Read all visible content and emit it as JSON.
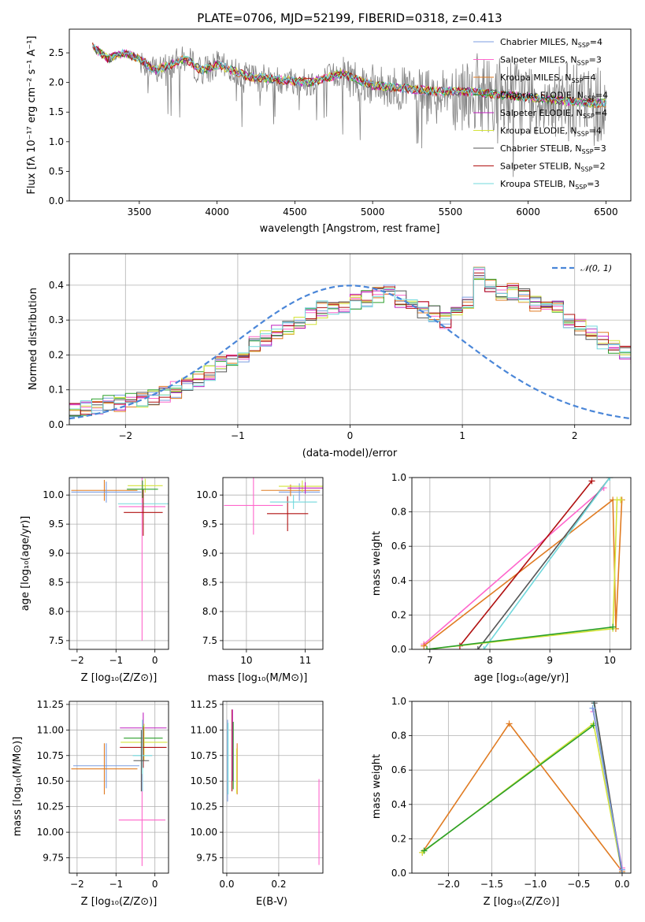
{
  "chart_data": [
    {
      "id": "spectrum",
      "type": "line",
      "title": "PLATE=0706, MJD=52199, FIBERID=0318, z=0.413",
      "xlabel": "wavelength [Angstrom, rest frame]",
      "ylabel": "Flux [fλ 10⁻¹⁷ erg cm⁻² s⁻¹ A⁻¹]",
      "xlim": [
        3050,
        6660
      ],
      "ylim": [
        0,
        2.9
      ],
      "xticks": [
        "3500",
        "4000",
        "4500",
        "5000",
        "5500",
        "6000",
        "6500"
      ],
      "xtick_values": [
        3500,
        4000,
        4500,
        5000,
        5500,
        6000,
        6500
      ],
      "yticks": [
        "0.0",
        "0.5",
        "1.0",
        "1.5",
        "2.0",
        "2.5"
      ],
      "ytick_values": [
        0,
        0.5,
        1.0,
        1.5,
        2.0,
        2.5
      ],
      "data_color": "#808080",
      "data_profile": {
        "x": [
          3200,
          3300,
          3400,
          3500,
          3600,
          3700,
          3800,
          3900,
          4000,
          4200,
          4400,
          4600,
          4800,
          5000,
          5200,
          5400,
          5600,
          5800,
          6000,
          6200,
          6400,
          6500
        ],
        "y": [
          2.6,
          2.4,
          2.5,
          2.4,
          2.2,
          2.3,
          2.4,
          2.2,
          2.3,
          2.1,
          2.05,
          2.0,
          2.15,
          1.95,
          1.9,
          1.85,
          1.85,
          1.8,
          1.75,
          1.7,
          1.65,
          1.65
        ]
      },
      "legend": [
        {
          "name": "Chabrier MILES, N_SSP=4",
          "prefix": "Chabrier MILES, N",
          "sub": "SSP",
          "suffix": "=4",
          "color": "#7b9ee0"
        },
        {
          "name": "Salpeter MILES, N_SSP=3",
          "prefix": "Salpeter MILES, N",
          "sub": "SSP",
          "suffix": "=3",
          "color": "#ff66cc"
        },
        {
          "name": "Kroupa MILES, N_SSP=4",
          "prefix": "Kroupa MILES, N",
          "sub": "SSP",
          "suffix": "=4",
          "color": "#e07b22"
        },
        {
          "name": "Chabrier ELODIE, N_SSP=4",
          "prefix": "Chabrier ELODIE, N",
          "sub": "SSP",
          "suffix": "=4",
          "color": "#2ca02c"
        },
        {
          "name": "Salpeter ELODIE, N_SSP=4",
          "prefix": "Salpeter ELODIE, N",
          "sub": "SSP",
          "suffix": "=4",
          "color": "#c020c0"
        },
        {
          "name": "Kroupa ELODIE, N_SSP=4",
          "prefix": "Kroupa ELODIE, N",
          "sub": "SSP",
          "suffix": "=4",
          "color": "#d4e33a"
        },
        {
          "name": "Chabrier STELIB, N_SSP=3",
          "prefix": "Chabrier STELIB, N",
          "sub": "SSP",
          "suffix": "=3",
          "color": "#555555"
        },
        {
          "name": "Salpeter STELIB, N_SSP=2",
          "prefix": "Salpeter STELIB, N",
          "sub": "SSP",
          "suffix": "=2",
          "color": "#b01010"
        },
        {
          "name": "Kroupa STELIB, N_SSP=3",
          "prefix": "Kroupa STELIB, N",
          "sub": "SSP",
          "suffix": "=3",
          "color": "#70d8dc"
        }
      ],
      "legend_placement": "upper right",
      "grid": false
    },
    {
      "id": "residuals",
      "type": "histogram",
      "xlabel": "(data-model)/error",
      "ylabel": "Normed distribution",
      "xlim": [
        -2.5,
        2.5
      ],
      "ylim": [
        0,
        0.49
      ],
      "xticks": [
        "−2",
        "−1",
        "0",
        "1",
        "2"
      ],
      "xtick_values": [
        -2,
        -1,
        0,
        1,
        2
      ],
      "yticks": [
        "0.0",
        "0.1",
        "0.2",
        "0.3",
        "0.4"
      ],
      "ytick_values": [
        0,
        0.1,
        0.2,
        0.3,
        0.4
      ],
      "grid": true,
      "legend": [
        {
          "name": "𝒩(0, 1)",
          "color": "#4a86d8",
          "style": "dashed"
        }
      ],
      "legend_placement": "upper right",
      "bin_width": 0.1,
      "bin_start": -2.5,
      "base_counts": [
        0.04,
        0.045,
        0.05,
        0.06,
        0.06,
        0.065,
        0.075,
        0.08,
        0.09,
        0.1,
        0.11,
        0.13,
        0.15,
        0.17,
        0.19,
        0.2,
        0.23,
        0.25,
        0.27,
        0.28,
        0.3,
        0.31,
        0.33,
        0.33,
        0.34,
        0.35,
        0.36,
        0.37,
        0.38,
        0.36,
        0.34,
        0.33,
        0.32,
        0.3,
        0.32,
        0.35,
        0.44,
        0.4,
        0.38,
        0.38,
        0.37,
        0.35,
        0.34,
        0.33,
        0.3,
        0.28,
        0.26,
        0.24,
        0.22,
        0.2,
        0.18,
        0.17,
        0.16,
        0.14,
        0.13,
        0.12,
        0.11,
        0.1,
        0.09,
        0.085,
        0.08,
        0.075,
        0.07,
        0.06,
        0.055,
        0.05,
        0.045,
        0.045,
        0.04,
        0.04
      ],
      "normal": {
        "mu": 0,
        "sigma": 1
      }
    },
    {
      "id": "age_vs_Z",
      "type": "scatter",
      "xlabel": "Z [log₁₀(Z/Z⊙)]",
      "ylabel": "age  [log₁₀(age/yr)]",
      "xlim": [
        -2.2,
        0.35
      ],
      "ylim": [
        7.35,
        10.3
      ],
      "xticks": [
        "−2",
        "−1",
        "0"
      ],
      "xtick_values": [
        -2,
        -1,
        0
      ],
      "yticks": [
        "7.5",
        "8.0",
        "8.5",
        "9.0",
        "9.5",
        "10.0"
      ],
      "ytick_values": [
        7.5,
        8.0,
        8.5,
        9.0,
        9.5,
        10.0
      ],
      "grid": true,
      "points": [
        {
          "x": -1.3,
          "y": 10.08,
          "ex": 0.85,
          "ey": 0.18,
          "color": "#e07b22"
        },
        {
          "x": -1.25,
          "y": 10.05,
          "ex": 0.9,
          "ey": 0.18,
          "color": "#7b9ee0"
        },
        {
          "x": -0.33,
          "y": 9.8,
          "ex": 0.6,
          "ey": 2.3,
          "color": "#ff66cc"
        },
        {
          "x": -0.25,
          "y": 10.16,
          "ex": 0.45,
          "ey": 0.12,
          "color": "#d4e33a"
        },
        {
          "x": -0.3,
          "y": 9.85,
          "ex": 0.65,
          "ey": 0.15,
          "color": "#70d8dc"
        },
        {
          "x": -0.3,
          "y": 9.7,
          "ex": 0.5,
          "ey": 0.4,
          "color": "#b01010"
        },
        {
          "x": -0.32,
          "y": 10.1,
          "ex": 0.4,
          "ey": 0.15,
          "color": "#2ca02c"
        }
      ]
    },
    {
      "id": "age_vs_mass",
      "type": "scatter",
      "xlabel": "mass [log₁₀(M/M⊙)]",
      "ylabel": "",
      "xlim": [
        9.6,
        11.3
      ],
      "ylim": [
        7.35,
        10.3
      ],
      "xticks": [
        "10",
        "11"
      ],
      "xtick_values": [
        10,
        11
      ],
      "yticks": [
        "7.5",
        "8.0",
        "8.5",
        "9.0",
        "9.5",
        "10.0"
      ],
      "ytick_values": [
        7.5,
        8.0,
        8.5,
        9.0,
        9.5,
        10.0
      ],
      "grid": true,
      "points": [
        {
          "x": 10.12,
          "y": 9.82,
          "ex": 0.5,
          "ey": 0.5,
          "color": "#ff66cc"
        },
        {
          "x": 10.7,
          "y": 9.68,
          "ex": 0.35,
          "ey": 0.3,
          "color": "#b01010"
        },
        {
          "x": 10.8,
          "y": 9.88,
          "ex": 0.4,
          "ey": 0.12,
          "color": "#70d8dc"
        },
        {
          "x": 10.9,
          "y": 10.05,
          "ex": 0.35,
          "ey": 0.15,
          "color": "#7b9ee0"
        },
        {
          "x": 10.75,
          "y": 10.08,
          "ex": 0.5,
          "ey": 0.1,
          "color": "#e07b22"
        },
        {
          "x": 10.95,
          "y": 10.15,
          "ex": 0.4,
          "ey": 0.1,
          "color": "#d4e33a"
        },
        {
          "x": 11.0,
          "y": 10.12,
          "ex": 0.3,
          "ey": 0.1,
          "color": "#c020c0"
        }
      ]
    },
    {
      "id": "mass_weight_vs_age",
      "type": "line",
      "xlabel": "age  [log₁₀(age/yr)]",
      "ylabel": "mass weight",
      "xlim": [
        6.7,
        10.35
      ],
      "ylim": [
        0,
        1.0
      ],
      "xticks": [
        "7",
        "8",
        "9",
        "10"
      ],
      "xtick_values": [
        7,
        8,
        9,
        10
      ],
      "yticks": [
        "0.0",
        "0.2",
        "0.4",
        "0.6",
        "0.8",
        "1.0"
      ],
      "ytick_values": [
        0,
        0.2,
        0.4,
        0.6,
        0.8,
        1.0
      ],
      "grid": true,
      "series": [
        {
          "color": "#ff66cc",
          "x": [
            6.9,
            9.9
          ],
          "y": [
            0.03,
            0.94
          ]
        },
        {
          "color": "#e07b22",
          "x": [
            6.9,
            10.05,
            10.1,
            10.2
          ],
          "y": [
            0.02,
            0.87,
            0.12,
            0.87
          ]
        },
        {
          "color": "#b01010",
          "x": [
            7.5,
            9.7
          ],
          "y": [
            0.02,
            0.98
          ]
        },
        {
          "color": "#555555",
          "x": [
            7.8,
            10.0
          ],
          "y": [
            0.0,
            1.0
          ]
        },
        {
          "color": "#70d8dc",
          "x": [
            7.9,
            10.0
          ],
          "y": [
            0.0,
            1.0
          ]
        },
        {
          "color": "#d4e33a",
          "x": [
            6.95,
            10.05,
            10.12,
            10.18
          ],
          "y": [
            0.0,
            0.12,
            0.87,
            0.87
          ]
        },
        {
          "color": "#2ca02c",
          "x": [
            6.95,
            10.05
          ],
          "y": [
            0.0,
            0.13
          ]
        }
      ]
    },
    {
      "id": "mass_vs_Z",
      "type": "scatter",
      "xlabel": "Z [log₁₀(Z/Z⊙)]",
      "ylabel": "mass [log₁₀(M/M⊙)]",
      "xlim": [
        -2.2,
        0.35
      ],
      "ylim": [
        9.6,
        11.28
      ],
      "xticks": [
        "−2",
        "−1",
        "0"
      ],
      "xtick_values": [
        -2,
        -1,
        0
      ],
      "yticks": [
        "9.75",
        "10.00",
        "10.25",
        "10.50",
        "10.75",
        "11.00",
        "11.25"
      ],
      "ytick_values": [
        9.75,
        10.0,
        10.25,
        10.5,
        10.75,
        11.0,
        11.25
      ],
      "grid": true,
      "points": [
        {
          "x": -1.25,
          "y": 10.65,
          "ex": 0.85,
          "ey": 0.22,
          "color": "#7b9ee0"
        },
        {
          "x": -1.3,
          "y": 10.62,
          "ex": 0.85,
          "ey": 0.25,
          "color": "#e07b22"
        },
        {
          "x": -0.33,
          "y": 10.12,
          "ex": 0.6,
          "ey": 0.45,
          "color": "#ff66cc"
        },
        {
          "x": -0.3,
          "y": 11.02,
          "ex": 0.6,
          "ey": 0.15,
          "color": "#c020c0"
        },
        {
          "x": -0.3,
          "y": 10.92,
          "ex": 0.5,
          "ey": 0.12,
          "color": "#2ca02c"
        },
        {
          "x": -0.28,
          "y": 10.88,
          "ex": 0.6,
          "ey": 0.18,
          "color": "#d4e33a"
        },
        {
          "x": -0.3,
          "y": 10.83,
          "ex": 0.6,
          "ey": 0.2,
          "color": "#b01010"
        },
        {
          "x": -0.32,
          "y": 10.75,
          "ex": 0.25,
          "ey": 0.35,
          "color": "#70d8dc"
        },
        {
          "x": -0.35,
          "y": 10.7,
          "ex": 0.2,
          "ey": 0.3,
          "color": "#555555"
        }
      ]
    },
    {
      "id": "mass_vs_ebv",
      "type": "scatter",
      "xlabel": "E(B-V)",
      "ylabel": "",
      "xlim": [
        -0.015,
        0.37
      ],
      "ylim": [
        9.6,
        11.28
      ],
      "xticks": [
        "0.0",
        "0.2"
      ],
      "xtick_values": [
        0,
        0.2
      ],
      "yticks": [
        "9.75",
        "10.00",
        "10.25",
        "10.50",
        "10.75",
        "11.00",
        "11.25"
      ],
      "ytick_values": [
        9.75,
        10.0,
        10.25,
        10.5,
        10.75,
        11.0,
        11.25
      ],
      "grid": true,
      "points": [
        {
          "x": 0.003,
          "y": 10.7,
          "ex": 0,
          "ey": 0.4,
          "color": "#7b9ee0"
        },
        {
          "x": 0.005,
          "y": 10.72,
          "ex": 0,
          "ey": 0.35,
          "color": "#70d8dc"
        },
        {
          "x": 0.02,
          "y": 10.8,
          "ex": 0,
          "ey": 0.4,
          "color": "#b01010"
        },
        {
          "x": 0.022,
          "y": 10.85,
          "ex": 0,
          "ey": 0.35,
          "color": "#c020c0"
        },
        {
          "x": 0.025,
          "y": 10.75,
          "ex": 0,
          "ey": 0.33,
          "color": "#2ca02c"
        },
        {
          "x": 0.04,
          "y": 10.62,
          "ex": 0,
          "ey": 0.25,
          "color": "#e07b22"
        },
        {
          "x": 0.038,
          "y": 10.6,
          "ex": 0,
          "ey": 0.22,
          "color": "#d4e33a"
        },
        {
          "x": 0.355,
          "y": 10.1,
          "ex": 0,
          "ey": 0.42,
          "color": "#ff66cc"
        }
      ]
    },
    {
      "id": "mass_weight_vs_Z",
      "type": "line",
      "xlabel": "Z [log₁₀(Z/Z⊙)]",
      "ylabel": "mass weight",
      "xlim": [
        -2.42,
        0.1
      ],
      "ylim": [
        0,
        1.0
      ],
      "xticks": [
        "−2.0",
        "−1.5",
        "−1.0",
        "−0.5",
        "0.0"
      ],
      "xtick_values": [
        -2,
        -1.5,
        -1,
        -0.5,
        0
      ],
      "yticks": [
        "0.0",
        "0.2",
        "0.4",
        "0.6",
        "0.8",
        "1.0"
      ],
      "ytick_values": [
        0,
        0.2,
        0.4,
        0.6,
        0.8,
        1.0
      ],
      "grid": true,
      "series": [
        {
          "color": "#e07b22",
          "x": [
            -2.3,
            -1.3,
            0.0
          ],
          "y": [
            0.12,
            0.87,
            0.01
          ]
        },
        {
          "color": "#d4e33a",
          "x": [
            -2.3,
            -0.33,
            0.0
          ],
          "y": [
            0.12,
            0.87,
            0.0
          ]
        },
        {
          "color": "#2ca02c",
          "x": [
            -2.28,
            -0.33
          ],
          "y": [
            0.13,
            0.86
          ]
        },
        {
          "color": "#ff66cc",
          "x": [
            -0.33,
            0.0
          ],
          "y": [
            0.94,
            0.03
          ]
        },
        {
          "color": "#70d8dc",
          "x": [
            -0.33,
            0.0
          ],
          "y": [
            1.0,
            0.0
          ]
        },
        {
          "color": "#555555",
          "x": [
            -0.32,
            0.0
          ],
          "y": [
            0.99,
            0.0
          ]
        },
        {
          "color": "#7b9ee0",
          "x": [
            -0.34,
            0.0
          ],
          "y": [
            0.96,
            0.02
          ]
        }
      ]
    }
  ]
}
